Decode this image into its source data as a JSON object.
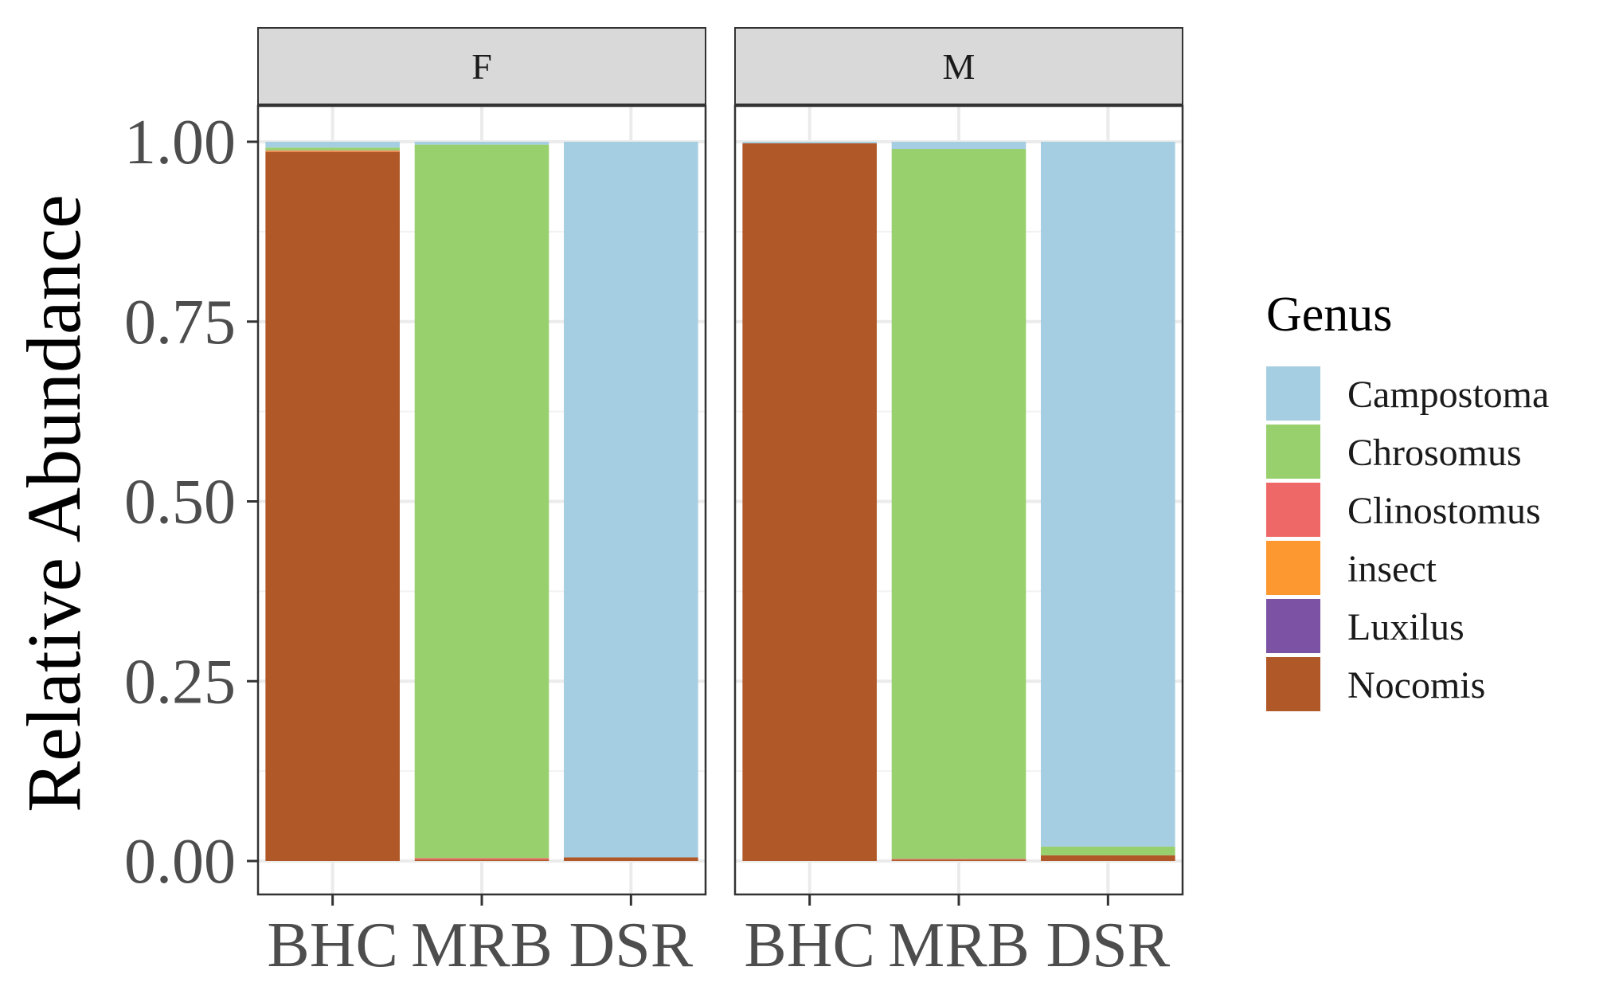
{
  "chart_data": {
    "type": "bar",
    "stacked": true,
    "ylabel": "Relative Abundance",
    "ylim": [
      0,
      1.0
    ],
    "yticks": [
      "0.00",
      "0.25",
      "0.50",
      "0.75",
      "1.00"
    ],
    "categories": [
      "BHC",
      "MRB",
      "DSR"
    ],
    "grid": true,
    "legend_position": "right",
    "legend": {
      "title": "Genus",
      "entries": [
        {
          "name": "Campostoma",
          "color": "#a6cee3"
        },
        {
          "name": "Chrosomus",
          "color": "#98d06e"
        },
        {
          "name": "Clinostomus",
          "color": "#ef6868"
        },
        {
          "name": "insect",
          "color": "#fd9830"
        },
        {
          "name": "Luxilus",
          "color": "#7c53a4"
        },
        {
          "name": "Nocomis",
          "color": "#b05828"
        }
      ]
    },
    "facets": [
      {
        "name": "F",
        "bars": [
          {
            "category": "BHC",
            "values": {
              "Nocomis": 0.986,
              "Clinostomus": 0.001,
              "insect": 0.001,
              "Chrosomus": 0.004,
              "Campostoma": 0.008
            }
          },
          {
            "category": "MRB",
            "values": {
              "Nocomis": 0.002,
              "Clinostomus": 0.002,
              "insect": 0.0,
              "Chrosomus": 0.992,
              "Campostoma": 0.004
            }
          },
          {
            "category": "DSR",
            "values": {
              "Nocomis": 0.005,
              "Clinostomus": 0.0,
              "insect": 0.0,
              "Chrosomus": 0.0,
              "Campostoma": 0.995
            }
          }
        ]
      },
      {
        "name": "M",
        "bars": [
          {
            "category": "BHC",
            "values": {
              "Nocomis": 0.998,
              "Clinostomus": 0.0,
              "insect": 0.0,
              "Chrosomus": 0.0,
              "Campostoma": 0.002
            }
          },
          {
            "category": "MRB",
            "values": {
              "Nocomis": 0.002,
              "Clinostomus": 0.001,
              "insect": 0.0,
              "Chrosomus": 0.987,
              "Campostoma": 0.01
            }
          },
          {
            "category": "DSR",
            "values": {
              "Nocomis": 0.008,
              "Clinostomus": 0.0,
              "insect": 0.0,
              "Chrosomus": 0.012,
              "Campostoma": 0.98
            }
          }
        ]
      }
    ]
  }
}
